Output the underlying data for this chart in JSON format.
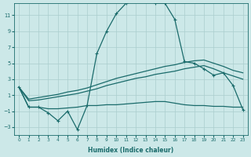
{
  "xlabel": "Humidex (Indice chaleur)",
  "bg_color": "#cce8e8",
  "line_color": "#1a6b6b",
  "grid_color": "#aacece",
  "xlim": [
    -0.5,
    23.5
  ],
  "ylim": [
    -4,
    12.5
  ],
  "yticks": [
    -3,
    -1,
    1,
    3,
    5,
    7,
    9,
    11
  ],
  "xticks": [
    0,
    1,
    2,
    3,
    4,
    5,
    6,
    7,
    8,
    9,
    10,
    11,
    12,
    13,
    14,
    15,
    16,
    17,
    18,
    19,
    20,
    21,
    22,
    23
  ],
  "curve_with_markers": {
    "x": [
      0,
      1,
      2,
      3,
      4,
      5,
      6,
      7,
      8,
      9,
      10,
      11,
      12,
      13,
      14,
      15,
      16,
      17,
      18,
      19,
      20,
      21,
      22,
      23
    ],
    "y": [
      2,
      -0.5,
      -0.5,
      -1.2,
      -2.2,
      -1.0,
      -3.3,
      -0.3,
      6.2,
      9.0,
      11.2,
      12.5,
      13.0,
      13.0,
      12.5,
      12.5,
      10.5,
      5.2,
      5.0,
      4.3,
      3.5,
      3.8,
      2.2,
      -0.8
    ]
  },
  "line_upper": {
    "x": [
      0,
      1,
      2,
      3,
      4,
      5,
      6,
      7,
      8,
      9,
      10,
      11,
      12,
      13,
      14,
      15,
      16,
      17,
      18,
      19,
      20,
      21,
      22,
      23
    ],
    "y": [
      2.0,
      0.5,
      0.7,
      0.9,
      1.1,
      1.4,
      1.6,
      1.9,
      2.3,
      2.7,
      3.1,
      3.4,
      3.7,
      4.0,
      4.3,
      4.6,
      4.8,
      5.1,
      5.3,
      5.4,
      5.0,
      4.6,
      4.1,
      3.8
    ]
  },
  "line_mid": {
    "x": [
      0,
      1,
      2,
      3,
      4,
      5,
      6,
      7,
      8,
      9,
      10,
      11,
      12,
      13,
      14,
      15,
      16,
      17,
      18,
      19,
      20,
      21,
      22,
      23
    ],
    "y": [
      2.0,
      0.3,
      0.4,
      0.6,
      0.8,
      1.0,
      1.2,
      1.5,
      1.8,
      2.2,
      2.5,
      2.8,
      3.1,
      3.3,
      3.6,
      3.8,
      4.0,
      4.3,
      4.5,
      4.7,
      4.3,
      3.8,
      3.4,
      3.0
    ]
  },
  "line_lower": {
    "x": [
      0,
      1,
      2,
      3,
      4,
      5,
      6,
      7,
      8,
      9,
      10,
      11,
      12,
      13,
      14,
      15,
      16,
      17,
      18,
      19,
      20,
      21,
      22,
      23
    ],
    "y": [
      2.0,
      -0.5,
      -0.5,
      -0.7,
      -0.7,
      -0.6,
      -0.5,
      -0.3,
      -0.3,
      -0.2,
      -0.2,
      -0.1,
      0.0,
      0.1,
      0.2,
      0.2,
      0.0,
      -0.2,
      -0.3,
      -0.3,
      -0.4,
      -0.4,
      -0.5,
      -0.5
    ]
  }
}
